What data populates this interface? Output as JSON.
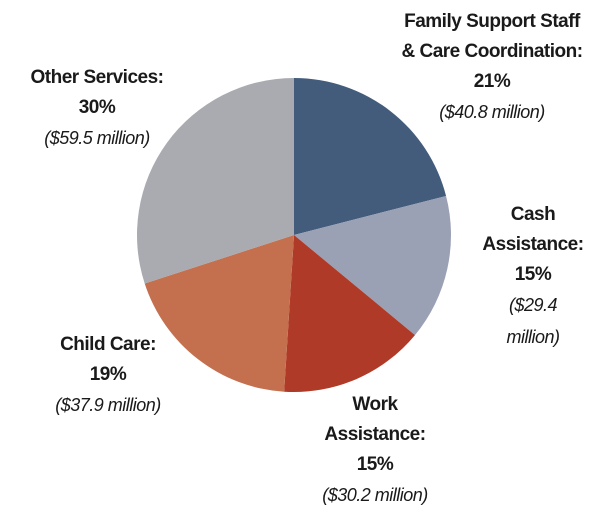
{
  "chart_data": {
    "type": "pie",
    "categories": [
      [
        "Family Support Staff",
        "& Care Coordination:"
      ],
      [
        "Cash",
        "Assistance:"
      ],
      [
        "Work",
        "Assistance:"
      ],
      [
        "Child Care:"
      ],
      [
        "Other Services:"
      ]
    ],
    "values": [
      21,
      15,
      15,
      19,
      30
    ],
    "value_labels": [
      "21%",
      "15%",
      "15%",
      "19%",
      "30%"
    ],
    "amounts": [
      [
        "($40.8 million)"
      ],
      [
        "($29.4",
        "million)"
      ],
      [
        "($30.2 million)"
      ],
      [
        "($37.9 million)"
      ],
      [
        "($59.5 million)"
      ]
    ],
    "colors": [
      "#435c7c",
      "#9aa1b5",
      "#b03a28",
      "#c4704f",
      "#a9abb0"
    ]
  }
}
